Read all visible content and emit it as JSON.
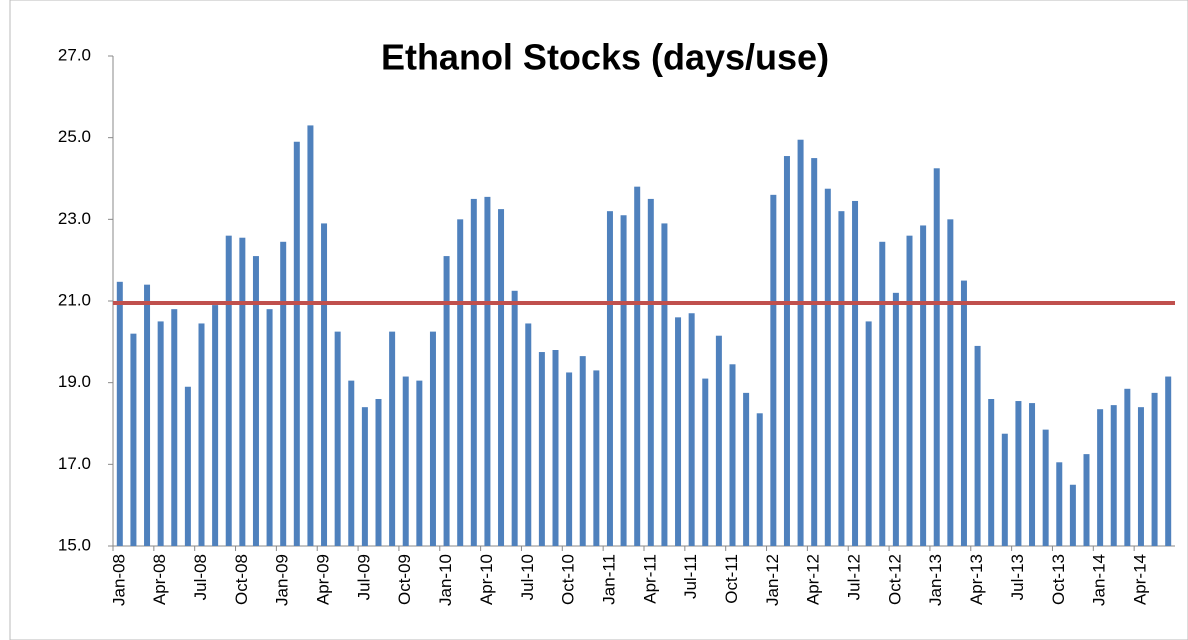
{
  "chart_data": {
    "type": "bar",
    "title": "Ethanol Stocks (days/use)",
    "categories": [
      "Jan-08",
      null,
      null,
      "Apr-08",
      null,
      null,
      "Jul-08",
      null,
      null,
      "Oct-08",
      null,
      null,
      "Jan-09",
      null,
      null,
      "Apr-09",
      null,
      null,
      "Jul-09",
      null,
      null,
      "Oct-09",
      null,
      null,
      "Jan-10",
      null,
      null,
      "Apr-10",
      null,
      null,
      "Jul-10",
      null,
      null,
      "Oct-10",
      null,
      null,
      "Jan-11",
      null,
      null,
      "Apr-11",
      null,
      null,
      "Jul-11",
      null,
      null,
      "Oct-11",
      null,
      null,
      "Jan-12",
      null,
      null,
      "Apr-12",
      null,
      null,
      "Jul-12",
      null,
      null,
      "Oct-12",
      null,
      null,
      "Jan-13",
      null,
      null,
      "Apr-13",
      null,
      null,
      "Jul-13",
      null,
      null,
      "Oct-13",
      null,
      null,
      "Jan-14",
      null,
      null,
      "Apr-14",
      null,
      null
    ],
    "values": [
      21.47,
      20.2,
      21.4,
      20.5,
      20.8,
      18.9,
      20.45,
      20.9,
      22.6,
      22.55,
      22.1,
      20.8,
      22.45,
      24.9,
      25.3,
      22.9,
      20.25,
      19.05,
      18.4,
      18.6,
      20.25,
      19.15,
      19.05,
      20.25,
      22.1,
      23.0,
      23.5,
      23.55,
      23.25,
      21.25,
      20.45,
      19.75,
      19.8,
      19.25,
      19.65,
      19.3,
      23.2,
      23.1,
      23.8,
      23.5,
      22.9,
      20.6,
      20.7,
      19.1,
      20.15,
      19.45,
      18.75,
      18.25,
      23.6,
      24.55,
      24.95,
      24.5,
      23.75,
      23.2,
      23.45,
      20.5,
      22.45,
      21.2,
      22.6,
      22.85,
      24.25,
      23.0,
      21.5,
      19.9,
      18.6,
      17.75,
      18.55,
      18.5,
      17.85,
      17.05,
      16.5,
      17.25,
      18.35,
      18.45,
      18.85,
      18.4,
      18.75,
      19.15
    ],
    "color": "#4f81bd",
    "reference_line": {
      "value": 20.95,
      "color": "#c0504d"
    },
    "ylim": [
      15,
      27
    ],
    "yticks": [
      {
        "value": 15,
        "label": "15.0"
      },
      {
        "value": 17,
        "label": "17.0"
      },
      {
        "value": 19,
        "label": "19.0"
      },
      {
        "value": 21,
        "label": "21.0"
      },
      {
        "value": 23,
        "label": "23.0"
      },
      {
        "value": 25,
        "label": "25.0"
      },
      {
        "value": 27,
        "label": "27.0"
      }
    ],
    "grid": false
  }
}
